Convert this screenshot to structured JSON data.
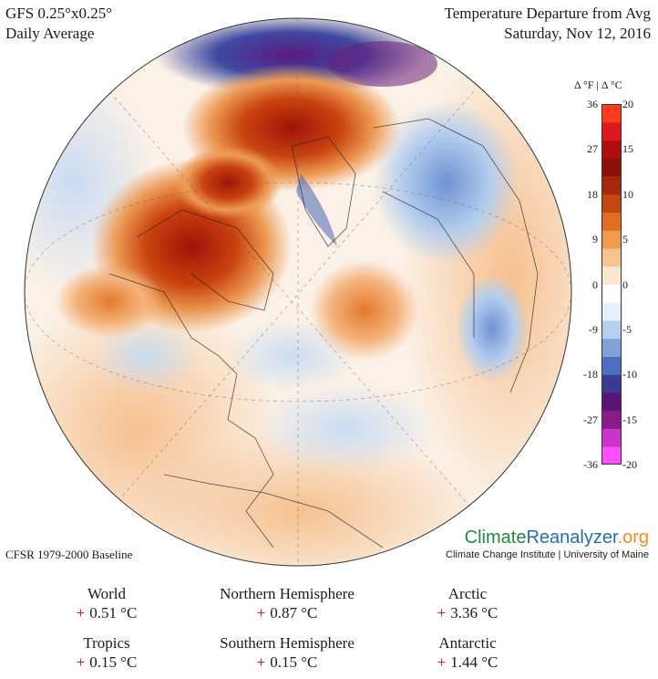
{
  "header": {
    "model": "GFS 0.25°x0.25°",
    "averaging": "Daily Average",
    "title": "Temperature Departure from Avg",
    "date": "Saturday, Nov 12, 2016"
  },
  "legend": {
    "units_label": "Δ °F  |  Δ °C",
    "fahrenheit_ticks": [
      "36",
      "27",
      "18",
      "9",
      "0",
      "-9",
      "-18",
      "-27",
      "-36"
    ],
    "celsius_ticks": [
      "20",
      "15",
      "10",
      "5",
      "0",
      "-5",
      "-10",
      "-15",
      "-20"
    ],
    "colors": [
      "#ff4dff",
      "#cc33cc",
      "#8b1a8b",
      "#5a1577",
      "#3d3a96",
      "#4f6fbf",
      "#7fa3d9",
      "#b7d0ef",
      "#e6f0fb",
      "#ffffff",
      "#fbe6cf",
      "#f6c48e",
      "#ee9a4f",
      "#df6d22",
      "#c44712",
      "#a5280b",
      "#8a1208",
      "#b30e0e",
      "#e0191c",
      "#ff3a1e"
    ]
  },
  "baseline": "CFSR 1979-2000 Baseline",
  "brand": {
    "name_part1": "Climate",
    "name_part2": "Reanalyzer",
    "name_part3": ".org",
    "subtitle": "Climate Change Institute | University of Maine",
    "color1": "#1f8a3d",
    "color2": "#1f6fb2",
    "color3": "#f28c1a"
  },
  "stats": [
    {
      "region": "World",
      "sign": "+",
      "value": "0.51 °C"
    },
    {
      "region": "Northern Hemisphere",
      "sign": "+",
      "value": "0.87 °C"
    },
    {
      "region": "Arctic",
      "sign": "+",
      "value": "3.36 °C"
    },
    {
      "region": "Tropics",
      "sign": "+",
      "value": "0.15 °C"
    },
    {
      "region": "Southern Hemisphere",
      "sign": "+",
      "value": "0.15 °C"
    },
    {
      "region": "Antarctic",
      "sign": "+",
      "value": "1.44 °C"
    }
  ]
}
